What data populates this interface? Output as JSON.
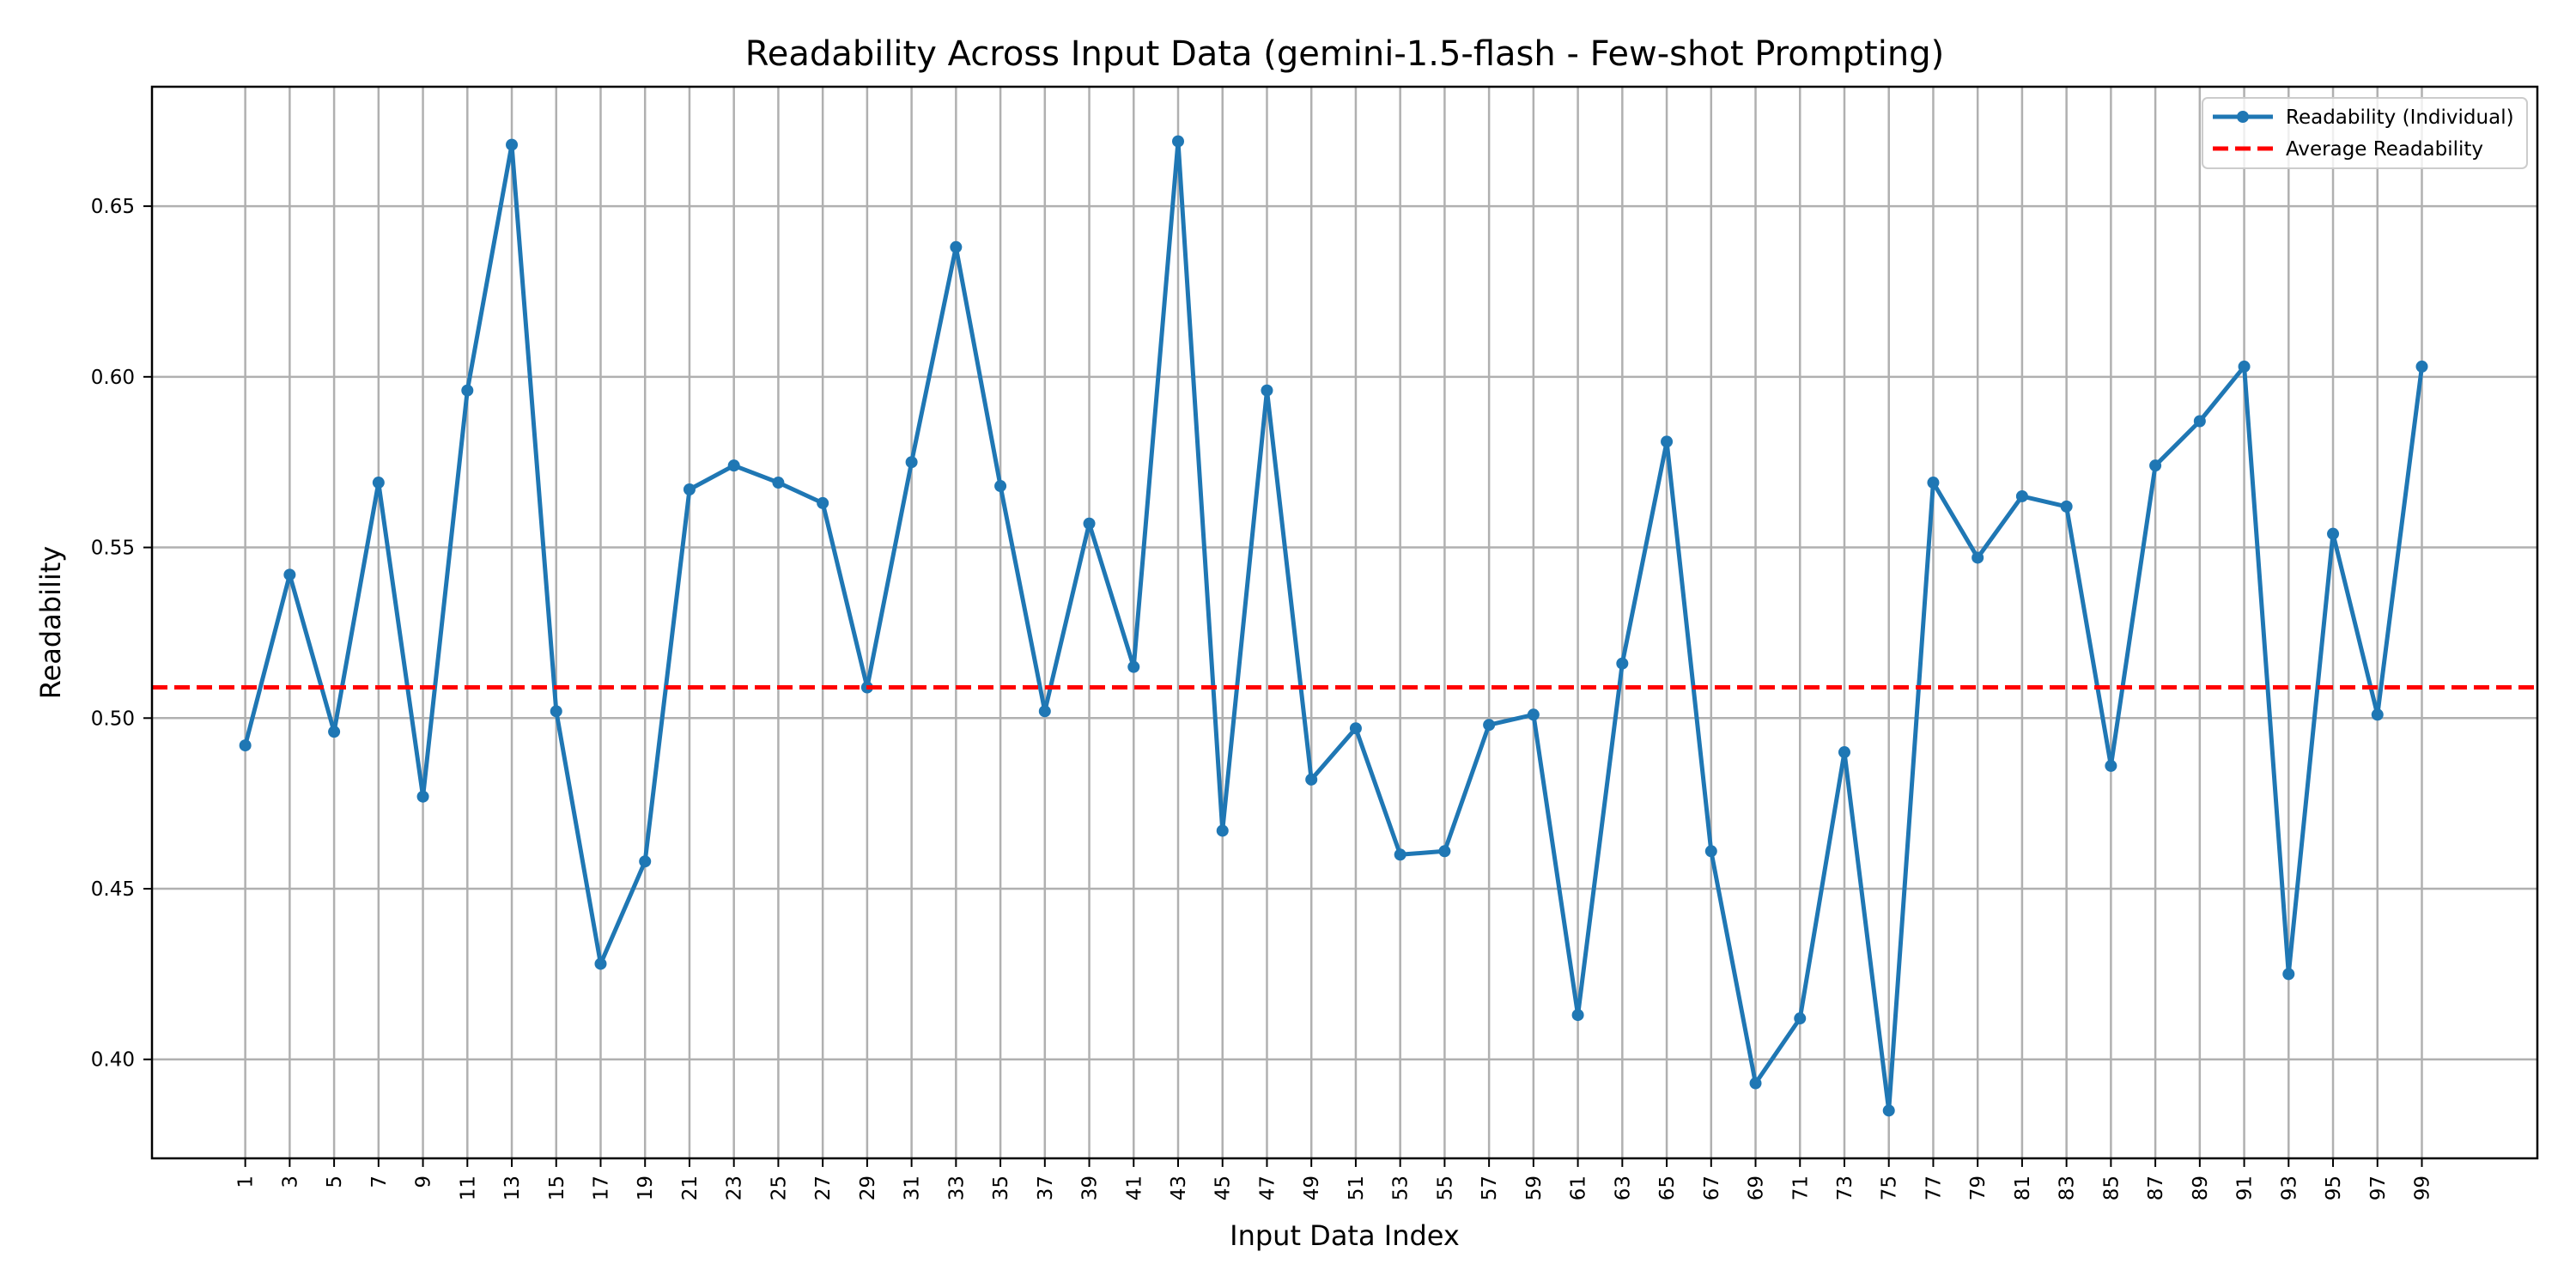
{
  "chart_data": {
    "type": "line",
    "title": "Readability Across Input Data (gemini-1.5-flash - Few-shot Prompting)",
    "xlabel": "Input Data Index",
    "ylabel": "Readability",
    "xlim": [
      -3.2,
      104.2
    ],
    "ylim": [
      0.371,
      0.685
    ],
    "x_ticks": [
      1,
      3,
      5,
      7,
      9,
      11,
      13,
      15,
      17,
      19,
      21,
      23,
      25,
      27,
      29,
      31,
      33,
      35,
      37,
      39,
      41,
      43,
      45,
      47,
      49,
      51,
      53,
      55,
      57,
      59,
      61,
      63,
      65,
      67,
      69,
      71,
      73,
      75,
      77,
      79,
      81,
      83,
      85,
      87,
      89,
      91,
      93,
      95,
      97,
      99
    ],
    "y_ticks": [
      "0.40",
      "0.45",
      "0.50",
      "0.55",
      "0.60",
      "0.65"
    ],
    "grid": true,
    "legend_position": "upper right",
    "legend": [
      "Readability (Individual)",
      "Average Readability"
    ],
    "series": [
      {
        "name": "Readability (Individual)",
        "color": "#1f77b4",
        "x": [
          1,
          3,
          5,
          7,
          9,
          11,
          13,
          15,
          17,
          19,
          21,
          23,
          25,
          27,
          29,
          31,
          33,
          35,
          37,
          39,
          41,
          43,
          45,
          47,
          49,
          51,
          53,
          55,
          57,
          59,
          61,
          63,
          65,
          67,
          69,
          71,
          73,
          75,
          77,
          79,
          81,
          83,
          85,
          87,
          89,
          91,
          93,
          95,
          97,
          99
        ],
        "values": [
          0.492,
          0.542,
          0.496,
          0.569,
          0.477,
          0.596,
          0.668,
          0.502,
          0.428,
          0.458,
          0.567,
          0.574,
          0.569,
          0.563,
          0.509,
          0.575,
          0.638,
          0.568,
          0.502,
          0.557,
          0.515,
          0.669,
          0.467,
          0.596,
          0.482,
          0.497,
          0.46,
          0.461,
          0.498,
          0.501,
          0.413,
          0.516,
          0.581,
          0.461,
          0.393,
          0.412,
          0.49,
          0.385,
          0.569,
          0.547,
          0.565,
          0.562,
          0.486,
          0.574,
          0.587,
          0.603,
          0.425,
          0.554,
          0.501,
          0.603
        ]
      },
      {
        "name": "Average Readability",
        "color": "#ff0000",
        "style": "dashed",
        "value": 0.509
      }
    ]
  }
}
